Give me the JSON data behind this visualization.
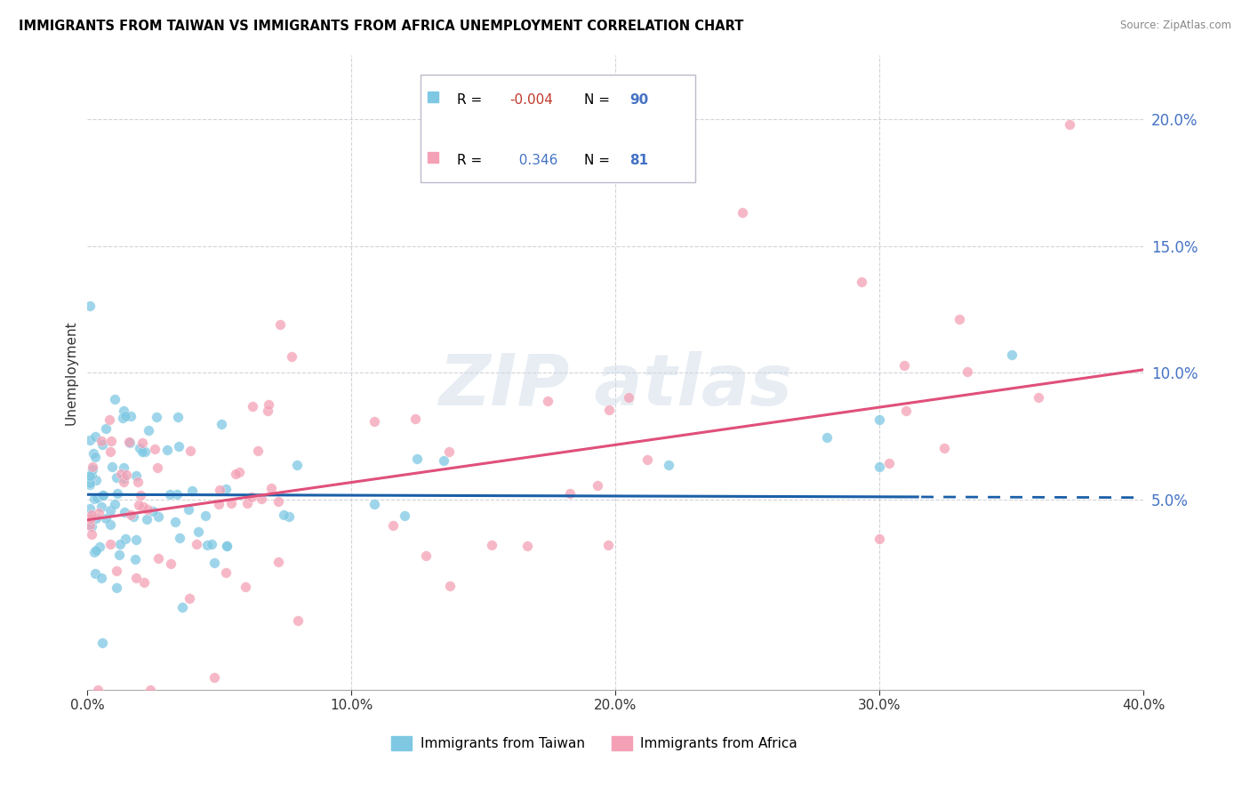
{
  "title": "IMMIGRANTS FROM TAIWAN VS IMMIGRANTS FROM AFRICA UNEMPLOYMENT CORRELATION CHART",
  "source": "Source: ZipAtlas.com",
  "ylabel": "Unemployment",
  "xlim": [
    0.0,
    0.4
  ],
  "ylim": [
    -0.025,
    0.225
  ],
  "yticks": [
    0.05,
    0.1,
    0.15,
    0.2
  ],
  "ytick_labels": [
    "5.0%",
    "10.0%",
    "15.0%",
    "20.0%"
  ],
  "xticks": [
    0.0,
    0.1,
    0.2,
    0.3,
    0.4
  ],
  "xtick_labels": [
    "0.0%",
    "10.0%",
    "20.0%",
    "30.0%",
    "40.0%"
  ],
  "taiwan_R": -0.004,
  "taiwan_N": 90,
  "africa_R": 0.346,
  "africa_N": 81,
  "taiwan_color": "#7ec8e3",
  "africa_color": "#f4a0b5",
  "taiwan_line_color": "#1a5fa8",
  "africa_line_color": "#e0507a",
  "grid_color": "#c8c8d0"
}
